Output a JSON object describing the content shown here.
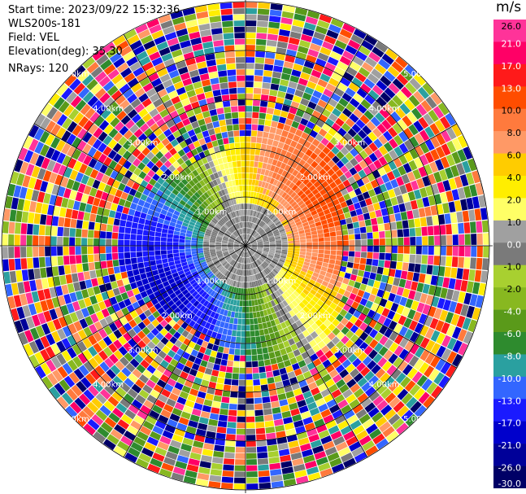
{
  "header": {
    "start_time": "Start time: 2023/09/22 15:32:36",
    "instrument": "WLS200s-181",
    "field": "Field: VEL",
    "elevation": "Elevation(deg): 35.30",
    "nrays": "NRays: 120"
  },
  "chart_data": {
    "type": "heatmap",
    "projection": "ppi-polar",
    "field": "VEL",
    "units": "m/s",
    "nrays": 120,
    "elevation_deg": 35.3,
    "max_range_km": 5.0,
    "range_ring_labels_km": [
      "1.00km",
      "2.00km",
      "3.00km",
      "4.00km",
      "5.00km"
    ],
    "spoke_angles_deg": [
      0,
      30,
      60,
      90,
      120,
      150,
      180,
      210,
      240,
      270,
      300,
      330
    ],
    "colorbar": {
      "label": "m/s",
      "tick_labels": [
        "26.0",
        "21.0",
        "17.0",
        "13.0",
        "10.0",
        "8.0",
        "6.0",
        "4.0",
        "2.0",
        "1.0",
        "0.0",
        "-1.0",
        "-2.0",
        "-4.0",
        "-6.0",
        "-8.0",
        "-10.0",
        "-13.0",
        "-17.0",
        "-21.0",
        "-26.0",
        "-30.0"
      ],
      "colors": [
        "#ff3399",
        "#ff0066",
        "#ff1a1a",
        "#ff4d00",
        "#ff7a3d",
        "#ff9966",
        "#ffcc00",
        "#ffee00",
        "#ffff66",
        "#a0a0a0",
        "#7a7a7a",
        "#a8d030",
        "#88b820",
        "#5a9a1a",
        "#2e8b2e",
        "#2aa0a0",
        "#3366ff",
        "#1a1aff",
        "#0000cc",
        "#000099",
        "#000066"
      ]
    },
    "signal_region": {
      "approx_extent_km": 2.3,
      "description_codes": [
        "near-zero grey centre",
        "positive velocities east/south",
        "negative velocities west/north"
      ]
    }
  }
}
